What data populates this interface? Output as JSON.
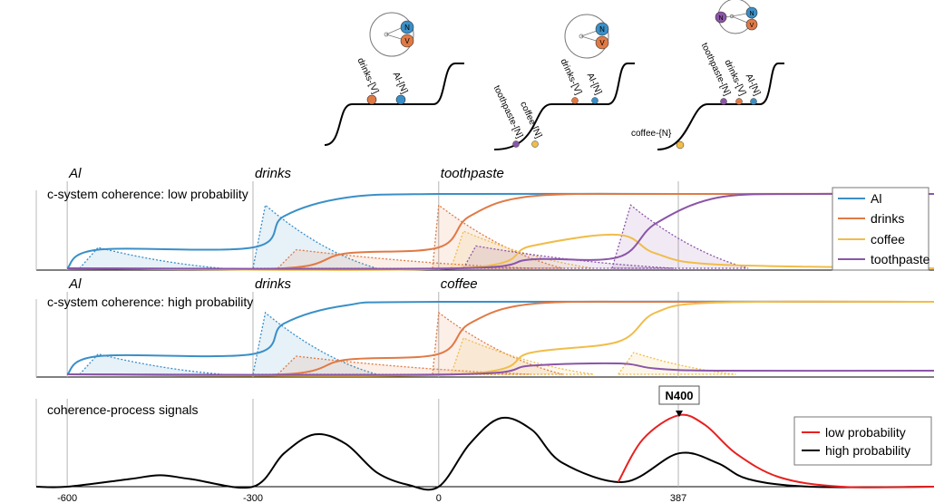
{
  "colors": {
    "Al": "#3a8fc7",
    "drinks": "#e07a45",
    "coffee": "#f0bd4a",
    "toothpaste": "#8b55a8",
    "low probability": "#e8201f",
    "high probability": "#000000"
  },
  "top_diagrams": [
    {
      "labels": [
        "drinks-[V]",
        "Al-[N]"
      ],
      "circle_nodes": [
        "N",
        "V"
      ]
    },
    {
      "labels": [
        "toothpaste-[N]",
        "coffee-[N]",
        "drinks-[V]",
        "Al-[N]"
      ],
      "circle_nodes": [
        "N",
        "V"
      ]
    },
    {
      "labels": [
        "coffee-{N}",
        "toothpaste-[N]",
        "drinks-[V]",
        "Al-[N]"
      ],
      "circle_nodes": [
        "N",
        "N",
        "V"
      ]
    }
  ],
  "chart_data": [
    {
      "type": "line",
      "title": "c-system coherence: low probability",
      "words": [
        {
          "x": -600,
          "text": "Al"
        },
        {
          "x": -300,
          "text": "drinks"
        },
        {
          "x": 0,
          "text": "toothpaste"
        }
      ],
      "legend": [
        "Al",
        "drinks",
        "coffee",
        "toothpaste"
      ],
      "legend_position": "top-right",
      "series": [
        {
          "name": "Al",
          "x": [
            -600,
            -550,
            -300,
            -250,
            -150,
            0,
            387,
            800
          ],
          "y": [
            0.0,
            0.25,
            0.28,
            0.7,
            0.95,
            1.0,
            1.0,
            1.0
          ]
        },
        {
          "name": "drinks",
          "x": [
            -600,
            -250,
            -150,
            0,
            50,
            150,
            387,
            800
          ],
          "y": [
            0.0,
            0.0,
            0.2,
            0.28,
            0.7,
            0.97,
            1.0,
            1.0
          ]
        },
        {
          "name": "coffee",
          "x": [
            -600,
            30,
            150,
            290,
            350,
            450,
            800
          ],
          "y": [
            0.0,
            0.0,
            0.3,
            0.45,
            0.2,
            0.05,
            0.0
          ]
        },
        {
          "name": "toothpaste",
          "x": [
            -600,
            30,
            150,
            290,
            350,
            450,
            600,
            800
          ],
          "y": [
            0.0,
            0.0,
            0.12,
            0.15,
            0.6,
            0.95,
            1.0,
            1.0
          ]
        }
      ]
    },
    {
      "type": "line",
      "title": "c-system coherence: high probability",
      "words": [
        {
          "x": -600,
          "text": "Al"
        },
        {
          "x": -300,
          "text": "drinks"
        },
        {
          "x": 0,
          "text": "coffee"
        }
      ],
      "series": [
        {
          "name": "Al",
          "x": [
            -600,
            -550,
            -300,
            -250,
            -150,
            0,
            800
          ],
          "y": [
            0.0,
            0.25,
            0.28,
            0.7,
            0.95,
            1.0,
            1.0
          ]
        },
        {
          "name": "drinks",
          "x": [
            -600,
            -250,
            -150,
            0,
            50,
            150,
            387,
            800
          ],
          "y": [
            0.0,
            0.0,
            0.2,
            0.28,
            0.7,
            0.97,
            1.0,
            1.0
          ]
        },
        {
          "name": "coffee",
          "x": [
            -600,
            30,
            150,
            290,
            350,
            450,
            800
          ],
          "y": [
            0.0,
            0.0,
            0.3,
            0.45,
            0.85,
            0.99,
            1.0
          ]
        },
        {
          "name": "toothpaste",
          "x": [
            -600,
            30,
            150,
            290,
            350,
            450,
            800
          ],
          "y": [
            0.0,
            0.0,
            0.12,
            0.15,
            0.08,
            0.05,
            0.05
          ]
        }
      ]
    },
    {
      "type": "line",
      "title": "coherence-process signals",
      "xticks": [
        -600,
        -300,
        0,
        387
      ],
      "xlim": [
        -650,
        800
      ],
      "annotation": "N400",
      "annotation_x": 387,
      "legend": [
        "low probability",
        "high probability"
      ],
      "legend_position": "right",
      "series": [
        {
          "name": "high probability",
          "x": [
            -650,
            -600,
            -500,
            -450,
            -400,
            -300,
            -250,
            -200,
            -150,
            -100,
            -50,
            0,
            50,
            100,
            150,
            200,
            300,
            387,
            450,
            500,
            600,
            800
          ],
          "y": [
            0.0,
            0.0,
            0.08,
            0.12,
            0.08,
            0.0,
            0.35,
            0.55,
            0.45,
            0.15,
            0.02,
            0.0,
            0.45,
            0.72,
            0.6,
            0.25,
            0.05,
            0.35,
            0.25,
            0.08,
            0.0,
            0.0
          ]
        },
        {
          "name": "low probability",
          "x": [
            290,
            330,
            387,
            430,
            480,
            550,
            650,
            800
          ],
          "y": [
            0.05,
            0.5,
            0.75,
            0.65,
            0.35,
            0.1,
            0.0,
            0.0
          ]
        }
      ]
    }
  ]
}
